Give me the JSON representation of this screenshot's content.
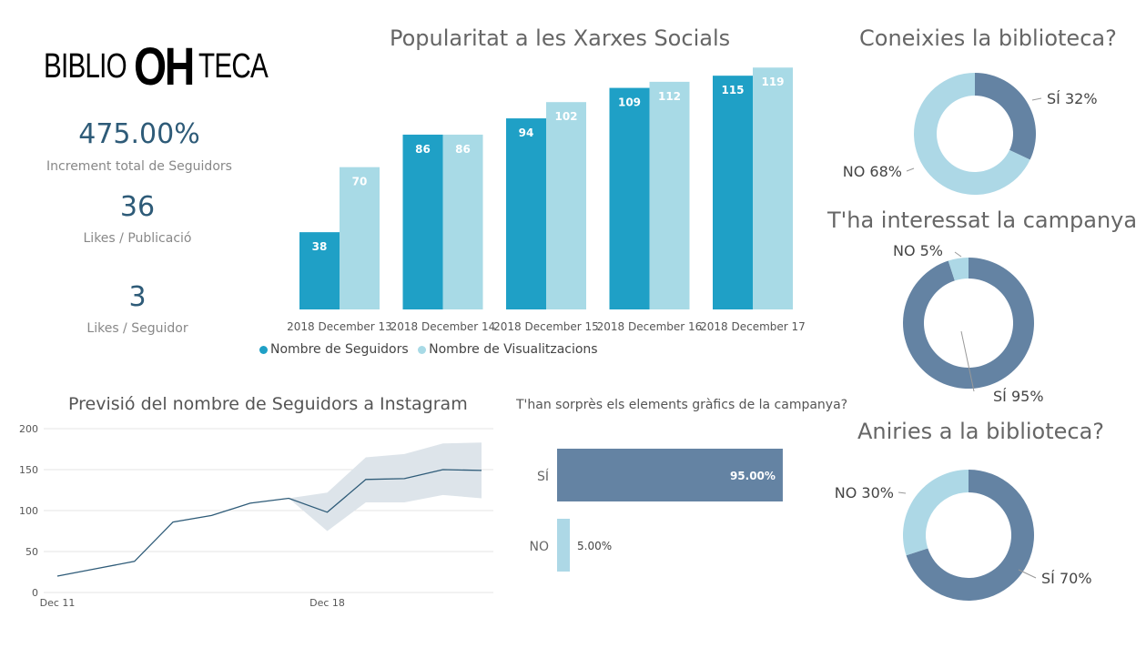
{
  "logo": {
    "part1": "BIBLIO",
    "part2": "OH",
    "part3": "TECA"
  },
  "kpis": [
    {
      "value": "475.00%",
      "label": "Increment total de Seguidors"
    },
    {
      "value": "36",
      "label": "Likes / Publicació"
    },
    {
      "value": "3",
      "label": "Likes / Seguidor"
    }
  ],
  "colors": {
    "dark_blue": "#1fa0c6",
    "light_blue": "#a8dae6",
    "slate": "#6483a3",
    "pale": "#add8e6"
  },
  "chart_data": [
    {
      "type": "bar",
      "title": "Popularitat a les Xarxes Socials",
      "categories": [
        "2018 December 13",
        "2018 December 14",
        "2018 December 15",
        "2018 December 16",
        "2018 December 17"
      ],
      "series": [
        {
          "name": "Nombre de Seguidors",
          "values": [
            38,
            86,
            94,
            109,
            115
          ],
          "color": "#1fa0c6"
        },
        {
          "name": "Nombre de Visualitzacions",
          "values": [
            70,
            86,
            102,
            112,
            119
          ],
          "color": "#a8dae6"
        }
      ],
      "ylim": [
        0,
        120
      ],
      "legend": "bottom-left"
    },
    {
      "type": "line",
      "title": "Previsió del nombre de Seguidors a Instagram",
      "x": [
        "Dec 11",
        "Dec 12",
        "Dec 13",
        "Dec 14",
        "Dec 15",
        "Dec 16",
        "Dec 17",
        "Dec 18",
        "Dec 19",
        "Dec 20",
        "Dec 21",
        "Dec 22"
      ],
      "y": [
        20,
        29,
        38,
        86,
        94,
        109,
        115,
        98,
        138,
        139,
        150,
        149
      ],
      "forecast_band": {
        "start_index": 6,
        "upper": [
          115,
          122,
          165,
          169,
          182,
          183
        ],
        "lower": [
          115,
          75,
          110,
          110,
          119,
          115
        ]
      },
      "xticks": [
        "Dec 11",
        "Dec 18"
      ],
      "yticks": [
        0,
        50,
        100,
        150,
        200
      ],
      "ylim": [
        0,
        200
      ],
      "grid": true
    },
    {
      "type": "bar",
      "orientation": "horizontal",
      "title": "T'han sorprès els elements gràfics de la campanya?",
      "categories": [
        "SÍ",
        "NO"
      ],
      "values": [
        95.0,
        5.0
      ],
      "labels": [
        "95.00%",
        "5.00%"
      ],
      "colors": [
        "#6483a3",
        "#add8e6"
      ]
    },
    {
      "type": "pie",
      "subtype": "donut",
      "title": "Coneixies la biblioteca?",
      "slices": [
        {
          "label": "SÍ 32%",
          "value": 32,
          "color": "#6483a3"
        },
        {
          "label": "NO 68%",
          "value": 68,
          "color": "#add8e6"
        }
      ]
    },
    {
      "type": "pie",
      "subtype": "donut",
      "title": "T'ha interessat la campanya?",
      "slices": [
        {
          "label": "SÍ 95%",
          "value": 95,
          "color": "#6483a3"
        },
        {
          "label": "NO 5%",
          "value": 5,
          "color": "#add8e6"
        }
      ]
    },
    {
      "type": "pie",
      "subtype": "donut",
      "title": "Aniries a la biblioteca?",
      "slices": [
        {
          "label": "SÍ 70%",
          "value": 70,
          "color": "#6483a3"
        },
        {
          "label": "NO 30%",
          "value": 30,
          "color": "#add8e6"
        }
      ]
    }
  ]
}
